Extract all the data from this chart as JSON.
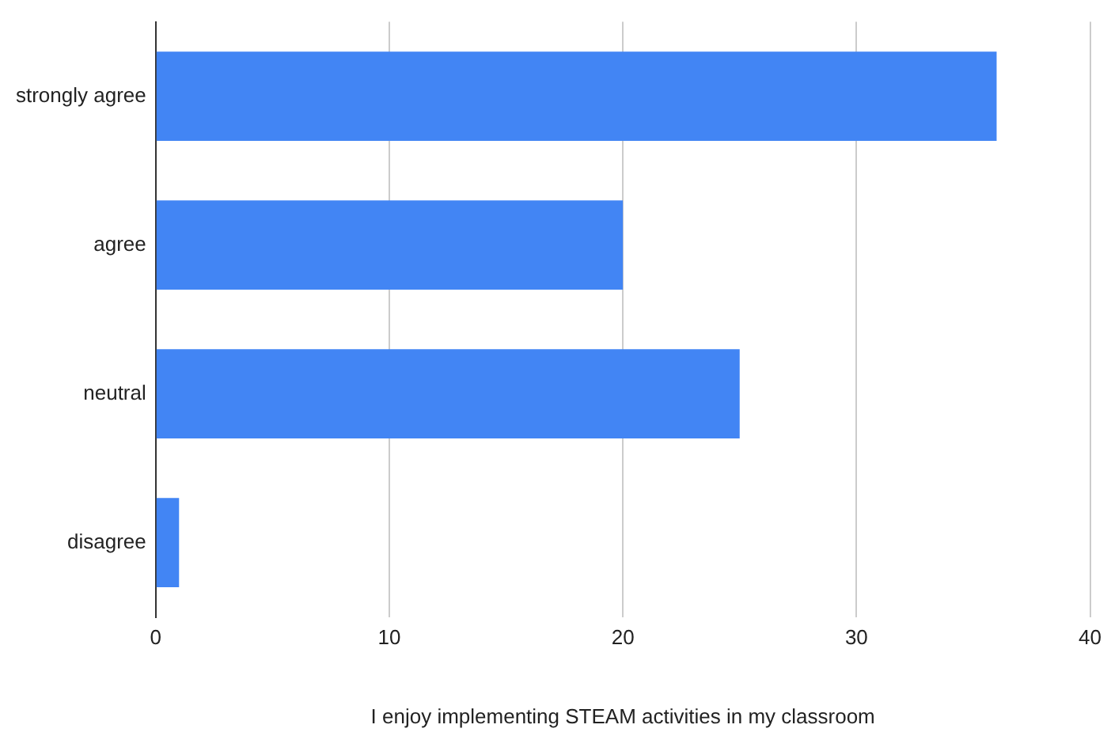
{
  "chart_data": {
    "type": "bar",
    "orientation": "horizontal",
    "xlabel": "I enjoy implementing STEAM activities in my classroom",
    "categories": [
      "strongly agree",
      "agree",
      "neutral",
      "disagree"
    ],
    "values": [
      36,
      20,
      25,
      1
    ],
    "color": "#4285f4",
    "xlim": [
      0,
      40
    ],
    "xticks": [
      0,
      10,
      20,
      30,
      40
    ],
    "grid": "x"
  }
}
